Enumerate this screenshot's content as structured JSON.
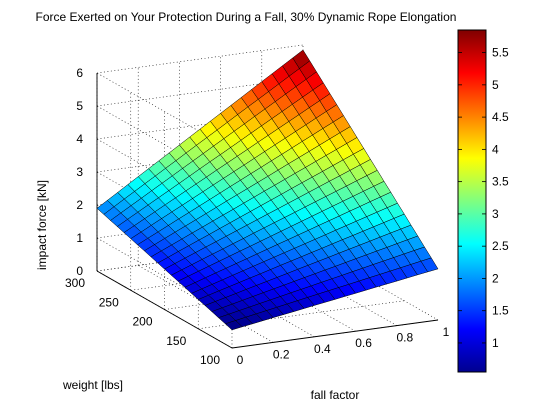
{
  "chart_data": {
    "type": "surface",
    "title": "Force Exerted on Your Protection During a Fall, 30% Dynamic Rope Elongation",
    "xlabel": "fall factor",
    "ylabel": "weight [lbs]",
    "zlabel": "impact force [kN]",
    "x_ticks": [
      "0",
      "0.2",
      "0.4",
      "0.6",
      "0.8",
      "1"
    ],
    "y_ticks": [
      "100",
      "150",
      "200",
      "250",
      "300"
    ],
    "z_ticks": [
      "0",
      "1",
      "2",
      "3",
      "4",
      "5",
      "6"
    ],
    "xlim": [
      0,
      1
    ],
    "ylim": [
      100,
      300
    ],
    "zlim": [
      0,
      6
    ],
    "colorbar_ticks": [
      "1",
      "1.5",
      "2",
      "2.5",
      "3",
      "3.5",
      "4",
      "4.5",
      "5",
      "5.5"
    ],
    "colorbar_range": [
      0.55,
      5.85
    ],
    "colormap": "jet",
    "grid": true,
    "grid_divisions": 20,
    "corners": {
      "x": [
        0,
        1
      ],
      "y": [
        100,
        300
      ],
      "z_x0_y100": 0.55,
      "z_x1_y100": 1.55,
      "z_x0_y300": 1.9,
      "z_x1_y300": 5.85
    }
  }
}
